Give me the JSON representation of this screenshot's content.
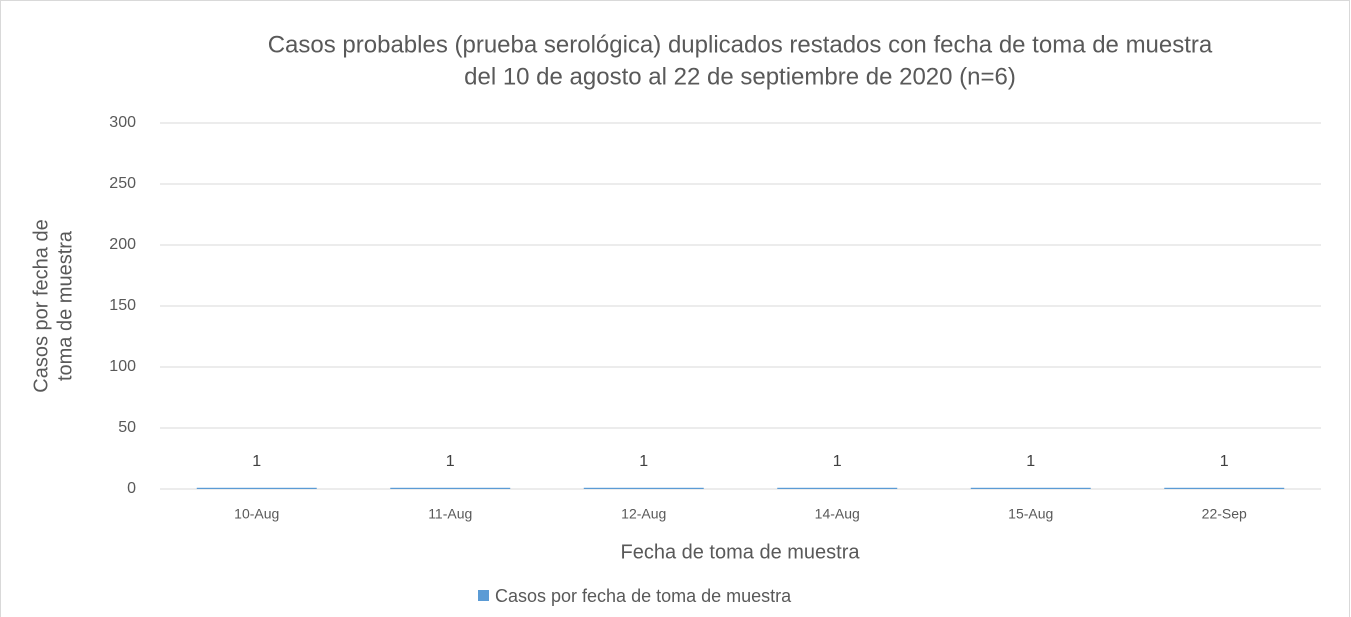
{
  "chart_data": {
    "type": "bar",
    "title": [
      "Casos probables (prueba serológica) duplicados restados con fecha de toma de muestra",
      "del 10 de agosto al 22 de septiembre de 2020 (n=6)"
    ],
    "x_label": "Fecha de toma de muestra",
    "y_label": [
      "Casos por fecha de",
      "toma de muestra"
    ],
    "categories": [
      "10-Aug",
      "11-Aug",
      "12-Aug",
      "14-Aug",
      "15-Aug",
      "22-Sep"
    ],
    "series": [
      {
        "name": "Casos por fecha de toma de muestra",
        "color": "#5b9bd5",
        "values": [
          1,
          1,
          1,
          1,
          1,
          1
        ]
      }
    ],
    "ylim": [
      0,
      300
    ],
    "yticks": [
      0,
      50,
      100,
      150,
      200,
      250,
      300
    ],
    "grid": true,
    "legend": "bottom"
  }
}
